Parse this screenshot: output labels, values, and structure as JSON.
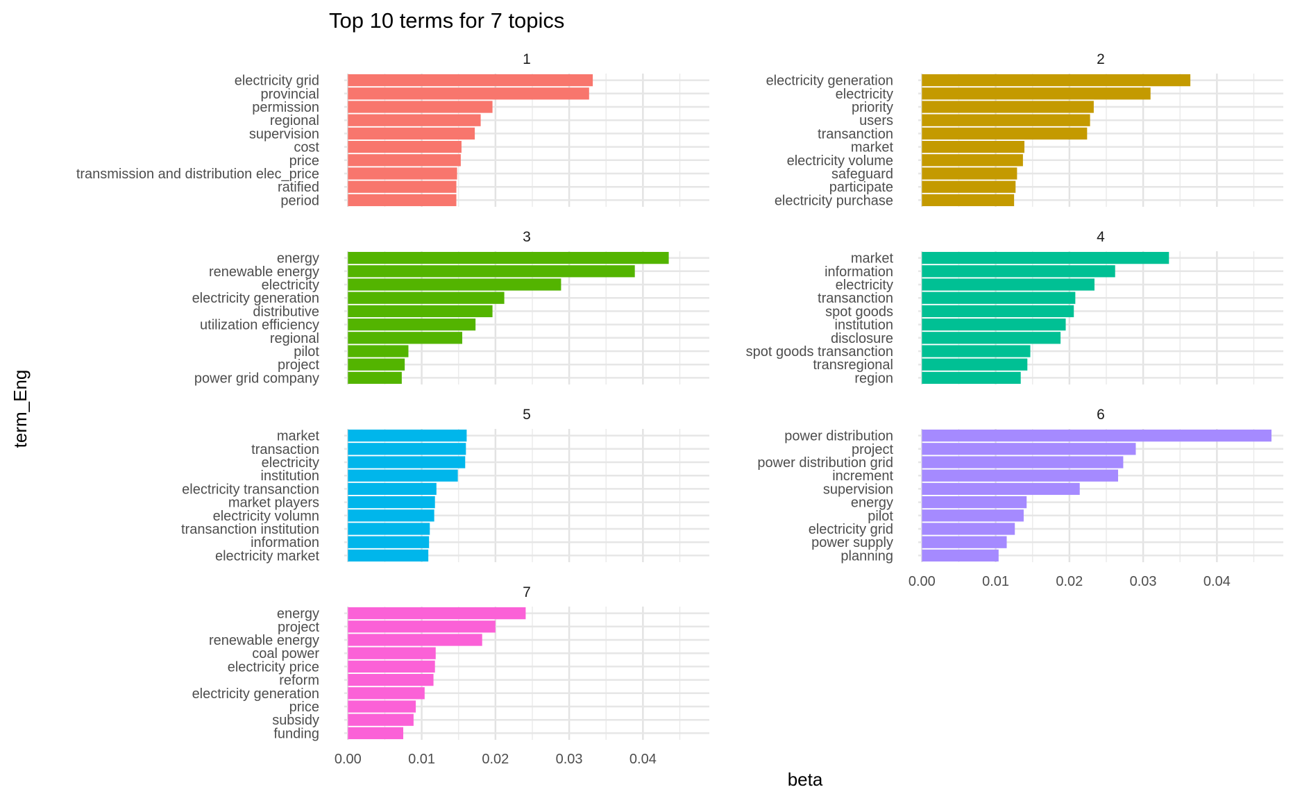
{
  "chart_data": {
    "type": "bar",
    "orientation": "horizontal",
    "title": "Top 10 terms for 7 topics",
    "xlabel": "beta",
    "ylabel": "term_Eng",
    "xlim": [
      -0.0005,
      0.049
    ],
    "x_ticks": [
      0.0,
      0.01,
      0.02,
      0.03,
      0.04
    ],
    "x_tick_labels": [
      "0.00",
      "0.01",
      "0.02",
      "0.03",
      "0.04"
    ],
    "grid": true,
    "legend": "none",
    "facets": [
      {
        "label": "1",
        "color": "#F8766D",
        "terms": [
          "electricity grid",
          "provincial",
          "permission",
          "regional",
          "supervision",
          "cost",
          "price",
          "transmission and distribution elec_price",
          "ratified",
          "period"
        ],
        "values": [
          0.0332,
          0.0327,
          0.0196,
          0.018,
          0.0172,
          0.0154,
          0.0153,
          0.0148,
          0.0147,
          0.0147
        ]
      },
      {
        "label": "2",
        "color": "#C49A00",
        "terms": [
          "electricity generation",
          "electricity",
          "priority",
          "users",
          "transanction",
          "market",
          "electricity volume",
          "safeguard",
          "participate",
          "electricity purchase"
        ],
        "values": [
          0.0364,
          0.031,
          0.0233,
          0.0228,
          0.0224,
          0.0139,
          0.0137,
          0.0129,
          0.0127,
          0.0125
        ]
      },
      {
        "label": "3",
        "color": "#53B400",
        "terms": [
          "energy",
          "renewable energy",
          "electricity",
          "electricity generation",
          "distributive",
          "utilization efficiency",
          "regional",
          "pilot",
          "project",
          "power grid company"
        ],
        "values": [
          0.0435,
          0.0389,
          0.0289,
          0.0212,
          0.0196,
          0.0173,
          0.0155,
          0.0082,
          0.0077,
          0.0073
        ]
      },
      {
        "label": "4",
        "color": "#00C094",
        "terms": [
          "market",
          "information",
          "electricity",
          "transanction",
          "spot goods",
          "institution",
          "disclosure",
          "spot goods transanction",
          "transregional",
          "region"
        ],
        "values": [
          0.0335,
          0.0262,
          0.0234,
          0.0208,
          0.0206,
          0.0195,
          0.0188,
          0.0147,
          0.0143,
          0.0134
        ]
      },
      {
        "label": "5",
        "color": "#00B6EB",
        "terms": [
          "market",
          "transaction",
          "electricity",
          "institution",
          "electricity transanction",
          "market players",
          "electricity volumn",
          "transanction institution",
          "information",
          "electricity market"
        ],
        "values": [
          0.0161,
          0.016,
          0.0159,
          0.0149,
          0.012,
          0.0118,
          0.0117,
          0.0111,
          0.011,
          0.0109
        ]
      },
      {
        "label": "6",
        "color": "#A58AFF",
        "terms": [
          "power distribution",
          "project",
          "power distribution grid",
          "increment",
          "supervision",
          "energy",
          "pilot",
          "electricity grid",
          "power supply",
          "planning"
        ],
        "values": [
          0.0474,
          0.029,
          0.0273,
          0.0266,
          0.0214,
          0.0142,
          0.0138,
          0.0126,
          0.0115,
          0.0104
        ]
      },
      {
        "label": "7",
        "color": "#FB61D7",
        "terms": [
          "energy",
          "project",
          "renewable energy",
          "coal power",
          "electricity price",
          "reform",
          "electricity generation",
          "price",
          "subsidy",
          "funding"
        ],
        "values": [
          0.0241,
          0.02,
          0.0182,
          0.0119,
          0.0118,
          0.0116,
          0.0104,
          0.0092,
          0.0089,
          0.0075
        ]
      }
    ]
  }
}
